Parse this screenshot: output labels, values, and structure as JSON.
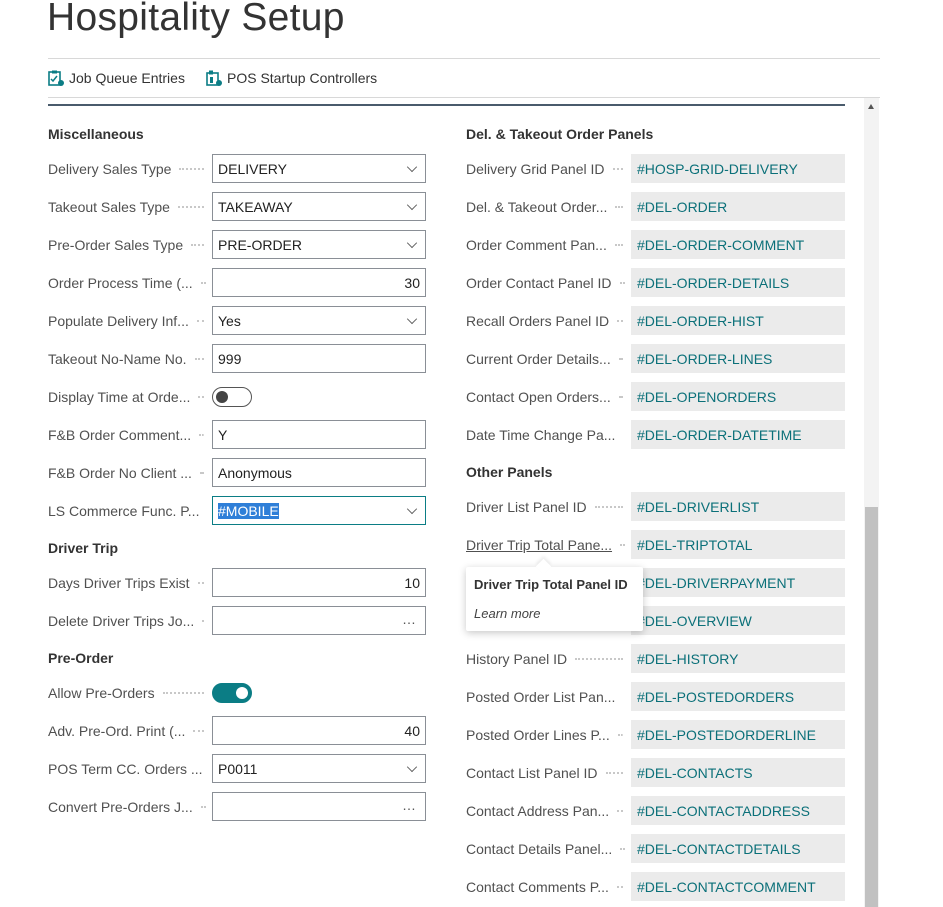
{
  "page_title": "Hospitality Setup",
  "actions": [
    {
      "label": "Job Queue Entries",
      "icon": "job-queue-icon"
    },
    {
      "label": "POS Startup Controllers",
      "icon": "pos-startup-icon"
    }
  ],
  "accent_color": "#0b7d85",
  "left": [
    {
      "type": "group",
      "label": "Miscellaneous"
    },
    {
      "label": "Delivery Sales Type",
      "kind": "select",
      "value": "DELIVERY"
    },
    {
      "label": "Takeout Sales Type",
      "kind": "select",
      "value": "TAKEAWAY"
    },
    {
      "label": "Pre-Order Sales Type",
      "kind": "select",
      "value": "PRE-ORDER"
    },
    {
      "label": "Order Process Time (...",
      "kind": "number",
      "value": "30"
    },
    {
      "label": "Populate Delivery Inf...",
      "kind": "select",
      "value": "Yes"
    },
    {
      "label": "Takeout No-Name No.",
      "kind": "text",
      "value": "999"
    },
    {
      "label": "Display Time at Orde...",
      "kind": "toggle",
      "value": false
    },
    {
      "label": "F&B Order Comment...",
      "kind": "text",
      "value": "Y"
    },
    {
      "label": "F&B Order No Client ...",
      "kind": "text",
      "value": "Anonymous"
    },
    {
      "label": "LS Commerce Func. P...",
      "kind": "select",
      "value": "#MOBILE",
      "focused": true
    },
    {
      "type": "group",
      "label": "Driver Trip"
    },
    {
      "label": "Days Driver Trips Exist",
      "kind": "number",
      "value": "10"
    },
    {
      "label": "Delete Driver Trips Jo...",
      "kind": "lookup",
      "value": ""
    },
    {
      "type": "group",
      "label": "Pre-Order"
    },
    {
      "label": "Allow Pre-Orders",
      "kind": "toggle",
      "value": true
    },
    {
      "label": "Adv. Pre-Ord. Print (...",
      "kind": "number",
      "value": "40"
    },
    {
      "label": "POS Term CC. Orders ...",
      "kind": "select",
      "value": "P0011"
    },
    {
      "label": "Convert Pre-Orders J...",
      "kind": "lookup",
      "value": ""
    }
  ],
  "right": [
    {
      "type": "group",
      "label": "Del. & Takeout Order Panels"
    },
    {
      "label": "Delivery Grid Panel ID",
      "value": "#HOSP-GRID-DELIVERY"
    },
    {
      "label": "Del. & Takeout Order...",
      "value": "#DEL-ORDER"
    },
    {
      "label": "Order Comment Pan...",
      "value": "#DEL-ORDER-COMMENT"
    },
    {
      "label": "Order Contact Panel ID",
      "value": "#DEL-ORDER-DETAILS"
    },
    {
      "label": "Recall Orders Panel ID",
      "value": "#DEL-ORDER-HIST"
    },
    {
      "label": "Current Order Details...",
      "value": "#DEL-ORDER-LINES"
    },
    {
      "label": "Contact Open Orders...",
      "value": "#DEL-OPENORDERS"
    },
    {
      "label": "Date Time Change Pa...",
      "value": "#DEL-ORDER-DATETIME"
    },
    {
      "type": "group",
      "label": "Other Panels"
    },
    {
      "label": "Driver List Panel ID",
      "value": "#DEL-DRIVERLIST"
    },
    {
      "label": "Driver Trip Total Pane...",
      "value": "#DEL-TRIPTOTAL",
      "hovered": true
    },
    {
      "label": "",
      "value": "#DEL-DRIVERPAYMENT"
    },
    {
      "label": "",
      "value": "#DEL-OVERVIEW"
    },
    {
      "label": "History Panel ID",
      "value": "#DEL-HISTORY"
    },
    {
      "label": "Posted Order List Pan...",
      "value": "#DEL-POSTEDORDERS"
    },
    {
      "label": "Posted Order Lines P...",
      "value": "#DEL-POSTEDORDERLINE"
    },
    {
      "label": "Contact List Panel ID",
      "value": "#DEL-CONTACTS"
    },
    {
      "label": "Contact Address Pan...",
      "value": "#DEL-CONTACTADDRESS"
    },
    {
      "label": "Contact Details Panel...",
      "value": "#DEL-CONTACTDETAILS"
    },
    {
      "label": "Contact Comments P...",
      "value": "#DEL-CONTACTCOMMENT"
    }
  ],
  "tooltip": {
    "title": "Driver Trip Total Panel ID",
    "link": "Learn more"
  }
}
